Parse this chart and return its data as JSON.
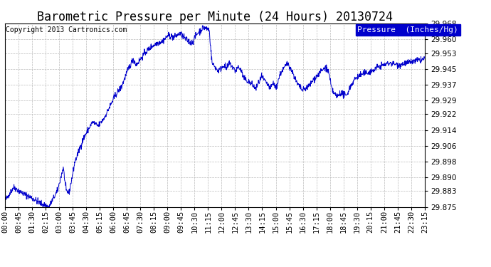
{
  "title": "Barometric Pressure per Minute (24 Hours) 20130724",
  "copyright": "Copyright 2013 Cartronics.com",
  "legend_label": "Pressure  (Inches/Hg)",
  "legend_bg": "#0000cc",
  "legend_fg": "#ffffff",
  "line_color": "#0000cc",
  "bg_color": "#ffffff",
  "grid_color": "#bbbbbb",
  "ylim": [
    29.875,
    29.968
  ],
  "yticks": [
    29.875,
    29.883,
    29.89,
    29.898,
    29.906,
    29.914,
    29.922,
    29.929,
    29.937,
    29.945,
    29.953,
    29.96,
    29.968
  ],
  "xtick_labels": [
    "00:00",
    "00:45",
    "01:30",
    "02:15",
    "03:00",
    "03:45",
    "04:30",
    "05:15",
    "06:00",
    "06:45",
    "07:30",
    "08:15",
    "09:00",
    "09:45",
    "10:30",
    "11:15",
    "12:00",
    "12:45",
    "13:30",
    "14:15",
    "15:00",
    "15:45",
    "16:30",
    "17:15",
    "18:00",
    "18:45",
    "19:30",
    "20:15",
    "21:00",
    "21:45",
    "22:30",
    "23:15"
  ],
  "title_fontsize": 12,
  "axis_fontsize": 7.5,
  "copyright_fontsize": 7.0,
  "legend_fontsize": 8.0
}
